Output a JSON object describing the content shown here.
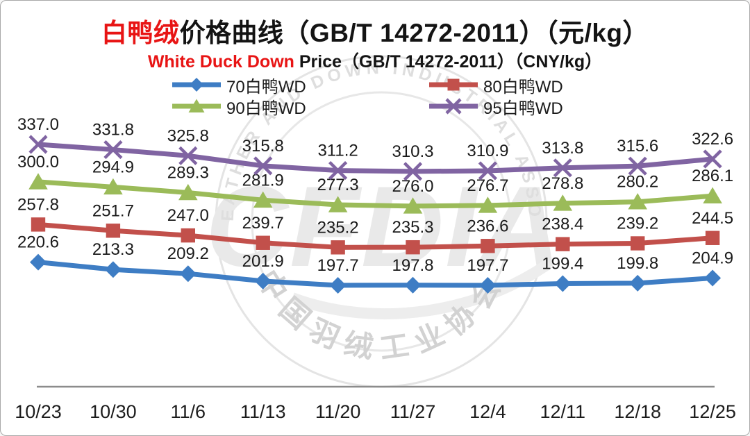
{
  "title": {
    "red": "白鸭绒",
    "black": "价格曲线（GB/T 14272-2011）（元/kg）"
  },
  "subtitle": {
    "red": "White Duck Down",
    "black": " Price（GB/T 14272-2011）（CNY/kg）"
  },
  "watermark": {
    "ring_text_top": "CHINA FEATHER AND DOWN INDUSTRIAL ASSOCIATION",
    "ring_text_bottom": "中国羽绒工业协会",
    "acronym": "CFDIA"
  },
  "colors": {
    "series_70": "#3e7dc4",
    "series_80": "#c2504b",
    "series_90": "#9bbb59",
    "series_95": "#8064a2",
    "axis_line": "#8c8c8c",
    "label_text": "#1a1a1a",
    "title_red": "#e81414"
  },
  "chart_data": {
    "type": "line",
    "title": "白鸭绒价格曲线（GB/T 14272-2011）（元/kg）",
    "subtitle": "White Duck Down Price（GB/T 14272-2011）（CNY/kg）",
    "xlabel": "",
    "ylabel": "元/kg (CNY/kg)",
    "grid": false,
    "y_axis_visible": false,
    "value_labels": true,
    "legend_position": "top",
    "ylim": [
      98,
      360
    ],
    "categories": [
      "10/23",
      "10/30",
      "11/6",
      "11/13",
      "11/20",
      "11/27",
      "12/4",
      "12/11",
      "12/18",
      "12/25"
    ],
    "series": [
      {
        "name": "70白鸭WD",
        "color": "#3e7dc4",
        "marker": "diamond",
        "values": [
          220.6,
          213.3,
          209.2,
          201.9,
          197.7,
          197.8,
          197.7,
          199.4,
          199.8,
          204.9
        ]
      },
      {
        "name": "80白鸭WD",
        "color": "#c2504b",
        "marker": "square",
        "values": [
          257.8,
          251.7,
          247.0,
          239.7,
          235.2,
          235.3,
          236.6,
          238.4,
          239.2,
          244.5
        ]
      },
      {
        "name": "90白鸭WD",
        "color": "#9bbb59",
        "marker": "triangle",
        "values": [
          300.0,
          294.9,
          289.3,
          281.9,
          277.3,
          276.0,
          276.7,
          278.8,
          280.2,
          286.1
        ]
      },
      {
        "name": "95白鸭WD",
        "color": "#8064a2",
        "marker": "x",
        "values": [
          337.0,
          331.8,
          325.8,
          315.8,
          311.2,
          310.3,
          310.9,
          313.8,
          315.6,
          322.6
        ]
      }
    ]
  }
}
